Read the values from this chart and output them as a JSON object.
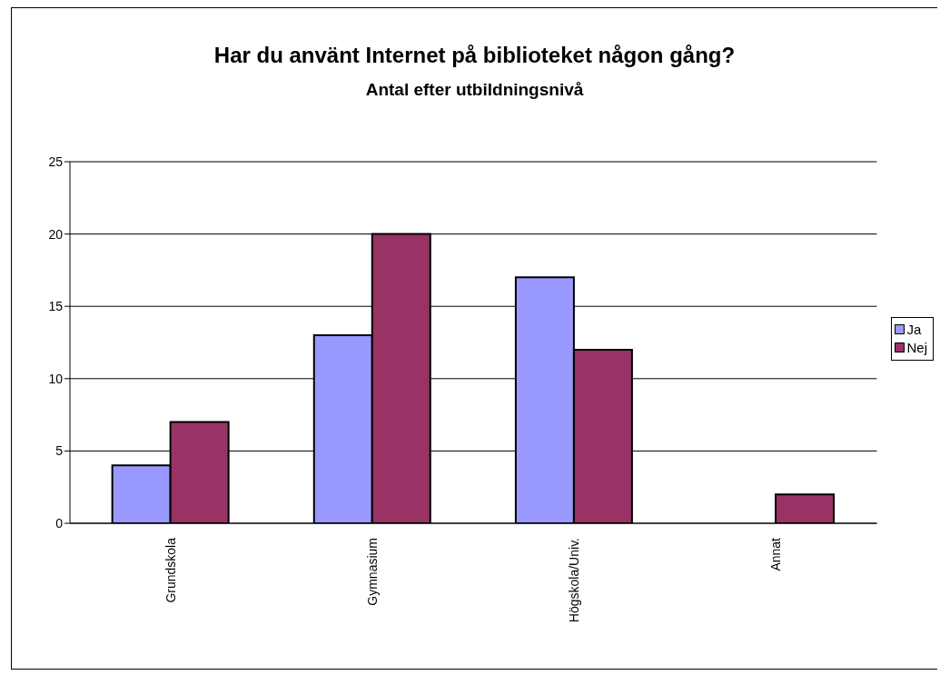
{
  "chart_data": {
    "type": "bar",
    "title": "Har du använt Internet på biblioteket någon gång?",
    "subtitle": "Antal efter utbildningsnivå",
    "categories": [
      "Grundskola",
      "Gymnasium",
      "Högskola/Univ.",
      "Annat"
    ],
    "series": [
      {
        "name": "Ja",
        "color": "#9999ff",
        "values": [
          4,
          13,
          17,
          0
        ]
      },
      {
        "name": "Nej",
        "color": "#993366",
        "values": [
          7,
          20,
          12,
          2
        ]
      }
    ],
    "ylim": [
      0,
      25
    ],
    "yticks": [
      0,
      5,
      10,
      15,
      20,
      25
    ],
    "grid": "y",
    "legend": "right"
  }
}
